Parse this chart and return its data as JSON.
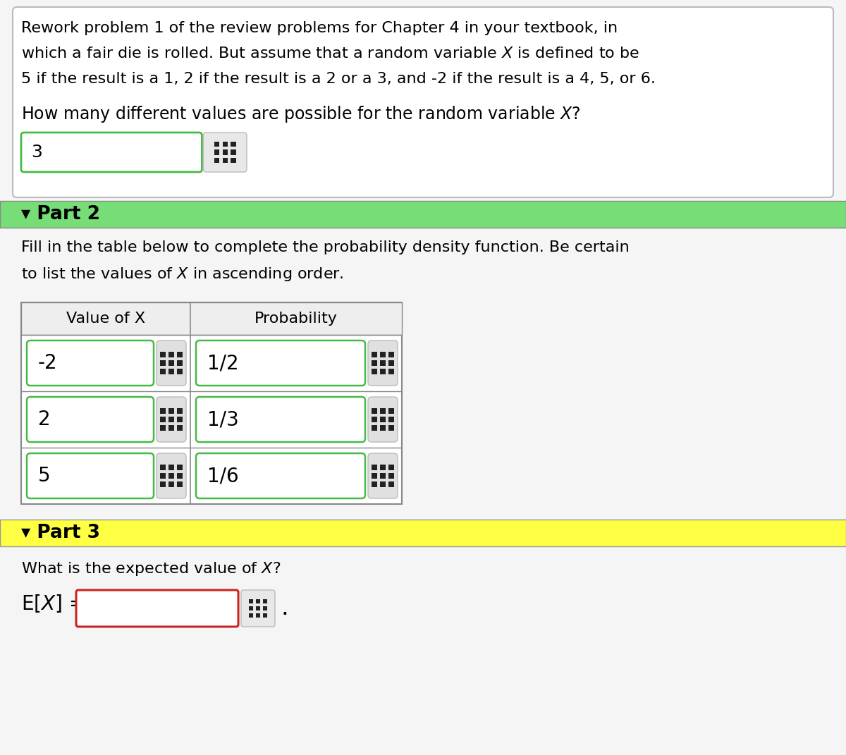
{
  "title_lines": [
    "Rework problem 1 of the review problems for Chapter 4 in your textbook, in",
    "which a fair die is rolled. But assume that a random variable $X$ is defined to be",
    "5 if the result is a 1, 2 if the result is a 2 or a 3, and -2 if the result is a 4, 5, or 6."
  ],
  "q1_text": "How many different values are possible for the random variable $X$?",
  "q1_answer": "3",
  "part2_label": "▾ Part 2",
  "part2_bg": "#77dd77",
  "part2_instruction_lines": [
    "Fill in the table below to complete the probability density function. Be certain",
    "to list the values of $X$ in ascending order."
  ],
  "table_header_val": "Value of X",
  "table_header_prob": "Probability",
  "table_rows": [
    [
      "-2",
      "1/2"
    ],
    [
      "2",
      "1/3"
    ],
    [
      "5",
      "1/6"
    ]
  ],
  "part3_label": "▾ Part 3",
  "part3_bg": "#ffff44",
  "part3_q": "What is the expected value of $X$?",
  "part3_eq": "E[$X$] =",
  "bg_color": "#f5f5f5",
  "white": "#ffffff",
  "text_color": "#000000",
  "green_border": "#44bb44",
  "gray_border": "#aaaaaa",
  "red_border": "#cc2222",
  "dark_border": "#777777",
  "grid_icon_color": "#222222",
  "font_size_body": 16,
  "font_size_large": 18,
  "font_size_part": 19
}
